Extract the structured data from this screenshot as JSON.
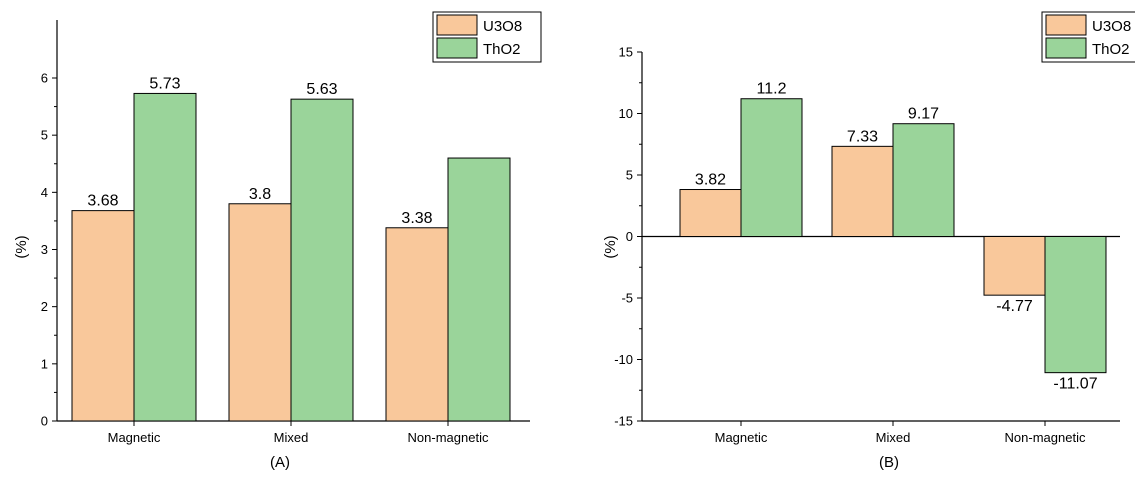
{
  "chart_data": [
    {
      "type": "bar",
      "panel_label": "(A)",
      "ylabel": "(%)",
      "xlabel": "",
      "categories": [
        "Magnetic",
        "Mixed",
        "Non-magnetic"
      ],
      "ylim": [
        0,
        6.5
      ],
      "yticks": [
        0,
        1,
        2,
        3,
        4,
        5,
        6
      ],
      "grid": false,
      "legend_position": "top-right",
      "series": [
        {
          "name": "U3O8",
          "color": "#f9c89b",
          "values": [
            3.68,
            3.8,
            3.38
          ],
          "labels": [
            "3.68",
            "3.8",
            "3.38"
          ]
        },
        {
          "name": "ThO2",
          "color": "#9ad49a",
          "values": [
            5.73,
            5.63,
            4.6
          ],
          "labels": [
            "5.73",
            "5.63",
            ""
          ]
        }
      ]
    },
    {
      "type": "bar",
      "panel_label": "(B)",
      "ylabel": "(%)",
      "xlabel": "",
      "categories": [
        "Magnetic",
        "Mixed",
        "Non-magnetic"
      ],
      "ylim": [
        -15,
        15
      ],
      "yticks": [
        -15,
        -10,
        -5,
        0,
        5,
        10,
        15
      ],
      "grid": false,
      "legend_position": "top-right",
      "series": [
        {
          "name": "U3O8",
          "color": "#f9c89b",
          "values": [
            3.82,
            7.33,
            -4.77
          ],
          "labels": [
            "3.82",
            "7.33",
            "-4.77"
          ]
        },
        {
          "name": "ThO2",
          "color": "#9ad49a",
          "values": [
            11.2,
            9.17,
            -11.07
          ],
          "labels": [
            "11.2",
            "9.17",
            "-11.07"
          ]
        }
      ]
    }
  ]
}
